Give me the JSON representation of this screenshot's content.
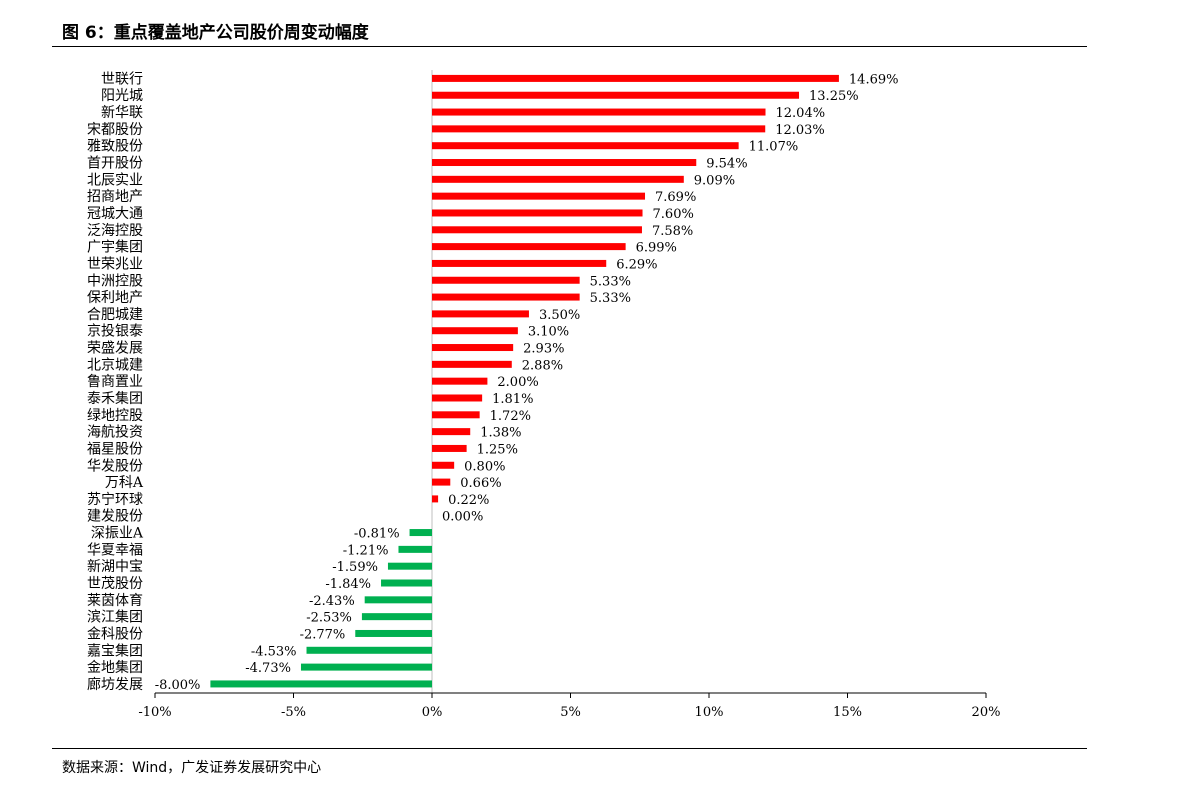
{
  "figure": {
    "title": "图 6：重点覆盖地产公司股价周变动幅度",
    "source": "数据来源：Wind，广发证券发展研究中心"
  },
  "chart_data": {
    "type": "bar",
    "orientation": "horizontal",
    "title": "",
    "xlabel": "",
    "ylabel": "",
    "xlim": [
      -10,
      20
    ],
    "xticks": [
      -10,
      -5,
      0,
      5,
      10,
      15,
      20
    ],
    "tick_suffix": "%",
    "grid": false,
    "legend": "none",
    "positive_color": "#ff0000",
    "negative_color": "#00b050",
    "categories": [
      "世联行",
      "阳光城",
      "新华联",
      "宋都股份",
      "雅致股份",
      "首开股份",
      "北辰实业",
      "招商地产",
      "冠城大通",
      "泛海控股",
      "广宇集团",
      "世荣兆业",
      "中洲控股",
      "保利地产",
      "合肥城建",
      "京投银泰",
      "荣盛发展",
      "北京城建",
      "鲁商置业",
      "泰禾集团",
      "绿地控股",
      "海航投资",
      "福星股份",
      "华发股份",
      "万科A",
      "苏宁环球",
      "建发股份",
      "深振业A",
      "华夏幸福",
      "新湖中宝",
      "世茂股份",
      "莱茵体育",
      "滨江集团",
      "金科股份",
      "嘉宝集团",
      "金地集团",
      "廊坊发展"
    ],
    "values": [
      14.69,
      13.25,
      12.04,
      12.03,
      11.07,
      9.54,
      9.09,
      7.69,
      7.6,
      7.58,
      6.99,
      6.29,
      5.33,
      5.33,
      3.5,
      3.1,
      2.93,
      2.88,
      2.0,
      1.81,
      1.72,
      1.38,
      1.25,
      0.8,
      0.66,
      0.22,
      0.0,
      -0.81,
      -1.21,
      -1.59,
      -1.84,
      -2.43,
      -2.53,
      -2.77,
      -4.53,
      -4.73,
      -8.0
    ]
  }
}
